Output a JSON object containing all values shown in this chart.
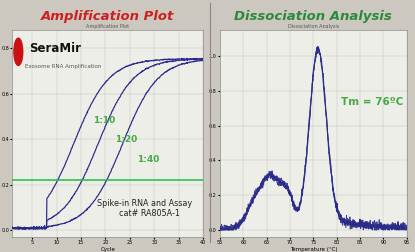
{
  "title_left": "Amplification Plot",
  "title_right": "Dissociation Analysis",
  "title_color_left": "#cc2020",
  "title_color_right": "#2a8a3a",
  "bg_color": "#ccc8bf",
  "plot_bg": "#eeeee8",
  "plot_border": "#999999",
  "grid_color": "#bbbbbb",
  "line_color": "#2a2a8a",
  "green_line_color": "#22bb44",
  "label_1_10": "1:10",
  "label_1_20": "1:20",
  "label_1_40": "1:40",
  "label_color": "#44aa44",
  "annotation_text": "Spike-in RNA and Assay\n    cat# RA805A-1",
  "tm_text": "Tm = 76ºC",
  "tm_color": "#44aa44",
  "seramir_text": "SeraMir",
  "exosome_text": "Exosome RNA Amplification",
  "logo_red": "#cc1111",
  "inner_title_left": "Amplification Plot",
  "inner_title_right": "Dissociation Analysis"
}
